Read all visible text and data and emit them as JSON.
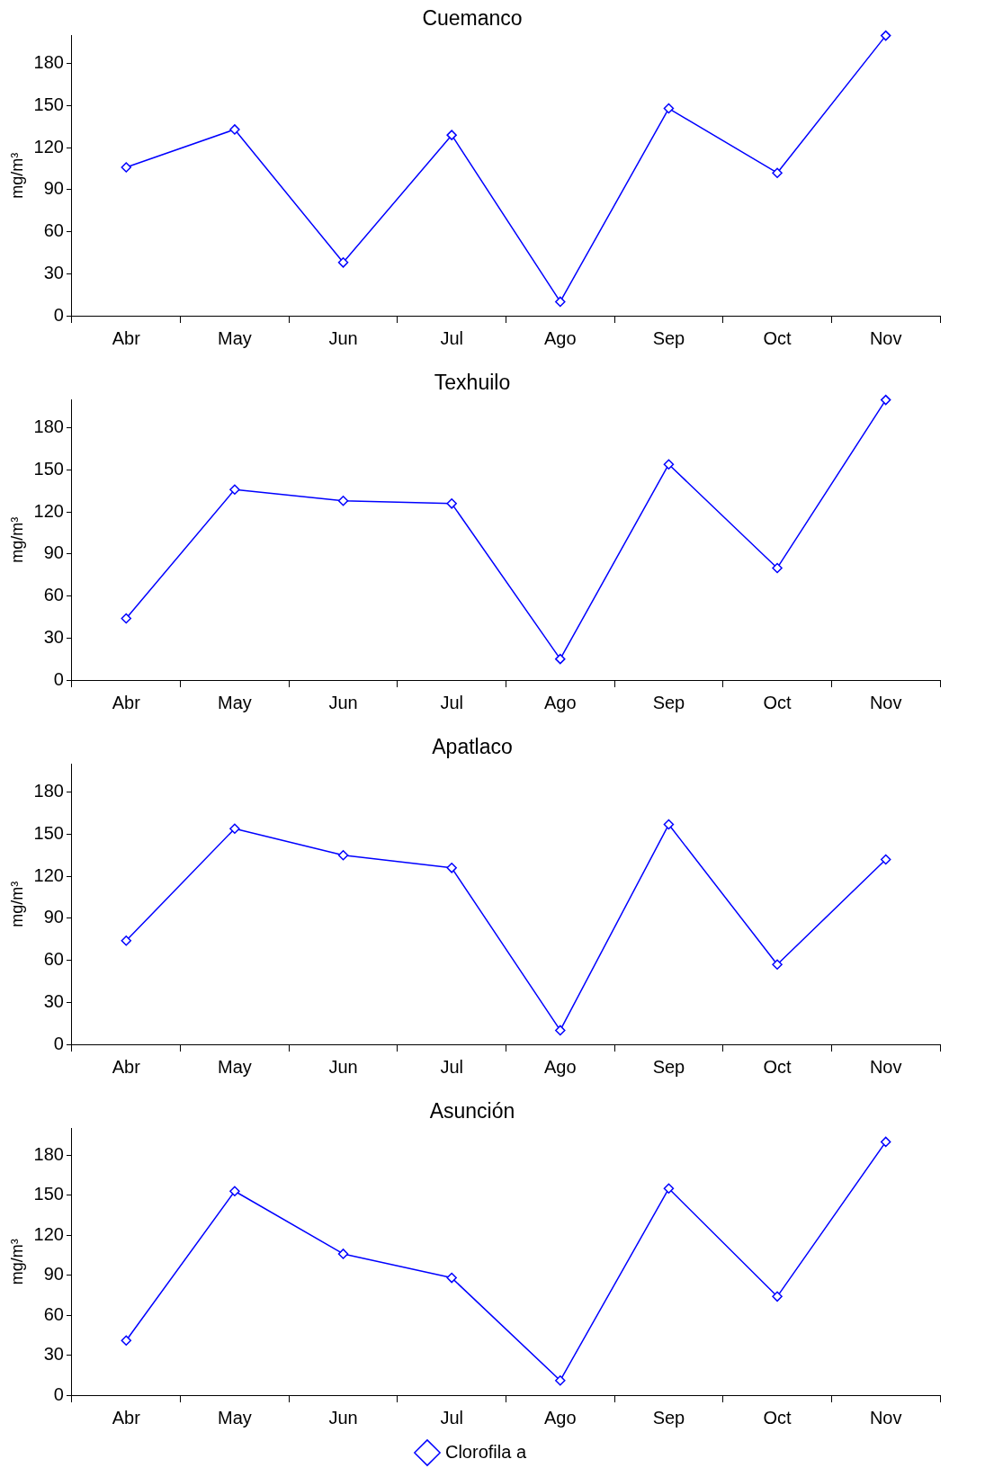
{
  "chart_data": [
    {
      "type": "line",
      "title": "Cuemanco",
      "ylabel": "mg/m³",
      "categories": [
        "Abr",
        "May",
        "Jun",
        "Jul",
        "Ago",
        "Sep",
        "Oct",
        "Nov"
      ],
      "series": [
        {
          "color": "#0000ff",
          "values": [
            106,
            133,
            38,
            129,
            10,
            148,
            102,
            200
          ]
        }
      ],
      "ylim": [
        0,
        200
      ],
      "yticks": [
        0,
        30,
        60,
        90,
        120,
        150,
        180
      ],
      "grid": false,
      "legend": false,
      "marker": "diamond",
      "line_style": "solid"
    },
    {
      "type": "line",
      "title": "Texhuilo",
      "ylabel": "mg/m³",
      "categories": [
        "Abr",
        "May",
        "Jun",
        "Jul",
        "Ago",
        "Sep",
        "Oct",
        "Nov"
      ],
      "series": [
        {
          "color": "#0000ff",
          "values": [
            44,
            136,
            128,
            126,
            15,
            154,
            80,
            200
          ]
        }
      ],
      "ylim": [
        0,
        200
      ],
      "yticks": [
        0,
        30,
        60,
        90,
        120,
        150,
        180
      ],
      "grid": false,
      "legend": false,
      "marker": "diamond",
      "line_style": "solid"
    },
    {
      "type": "line",
      "title": "Apatlaco",
      "ylabel": "mg/m³",
      "categories": [
        "Abr",
        "May",
        "Jun",
        "Jul",
        "Ago",
        "Sep",
        "Oct",
        "Nov"
      ],
      "series": [
        {
          "color": "#0000ff",
          "values": [
            74,
            154,
            135,
            126,
            10,
            157,
            57,
            132
          ]
        }
      ],
      "ylim": [
        0,
        200
      ],
      "yticks": [
        0,
        30,
        60,
        90,
        120,
        150,
        180
      ],
      "grid": false,
      "legend": false,
      "marker": "diamond",
      "line_style": "solid"
    },
    {
      "type": "line",
      "title": "Asunción",
      "ylabel": "mg/m³",
      "categories": [
        "Abr",
        "May",
        "Jun",
        "Jul",
        "Ago",
        "Sep",
        "Oct",
        "Nov"
      ],
      "series": [
        {
          "name": "Clorofila a",
          "color": "#0000ff",
          "values": [
            41,
            153,
            106,
            88,
            11,
            155,
            74,
            190
          ]
        }
      ],
      "ylim": [
        0,
        200
      ],
      "yticks": [
        0,
        30,
        60,
        90,
        120,
        150,
        180
      ],
      "grid": false,
      "legend": "bottom",
      "marker": "diamond",
      "line_style": "solid"
    }
  ]
}
